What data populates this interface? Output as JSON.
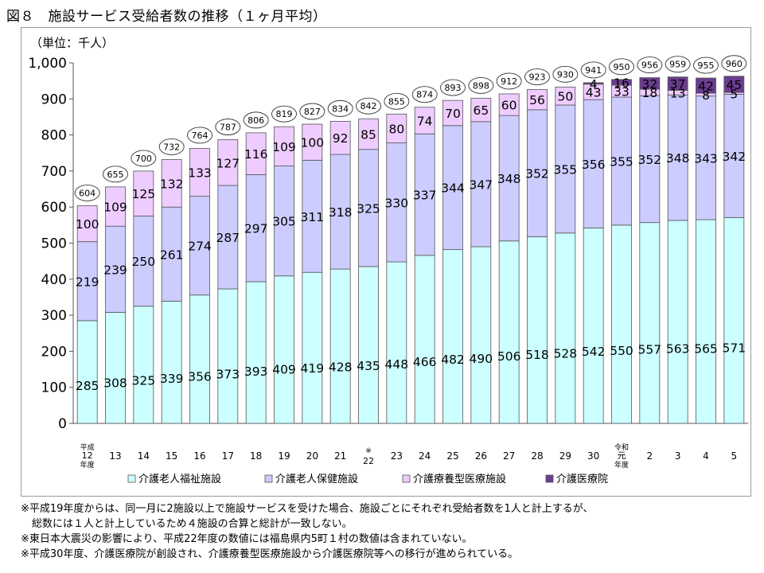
{
  "title": "図８　施設サービス受給者数の推移（１ヶ月平均）",
  "unit_label": "（単位：千人）",
  "colors": {
    "fukushi": "#ccffff",
    "hoken": "#ccccff",
    "ryoyo": "#eeccff",
    "iryoin": "#6a3d8f",
    "edge": "#555555"
  },
  "chart_data": {
    "type": "bar",
    "stacked": true,
    "title": "施設サービス受給者数の推移（１ヶ月平均）",
    "ylabel": "（単位：千人）",
    "ylim": [
      0,
      1000
    ],
    "yticks": [
      "0",
      "100",
      "200",
      "300",
      "400",
      "500",
      "600",
      "700",
      "800",
      "900",
      "1,000"
    ],
    "categories": [
      [
        "平成",
        "12",
        "年度"
      ],
      [
        "13"
      ],
      [
        "14"
      ],
      [
        "15"
      ],
      [
        "16"
      ],
      [
        "17"
      ],
      [
        "18"
      ],
      [
        "19"
      ],
      [
        "20"
      ],
      [
        "21"
      ],
      [
        "※",
        "22"
      ],
      [
        "23"
      ],
      [
        "24"
      ],
      [
        "25"
      ],
      [
        "26"
      ],
      [
        "27"
      ],
      [
        "28"
      ],
      [
        "29"
      ],
      [
        "30"
      ],
      [
        "令和",
        "元",
        "年度"
      ],
      [
        "2"
      ],
      [
        "3"
      ],
      [
        "4"
      ],
      [
        "5"
      ]
    ],
    "series": [
      {
        "name": "介護老人福祉施設",
        "values": [
          285,
          308,
          325,
          339,
          356,
          373,
          393,
          409,
          419,
          428,
          435,
          448,
          466,
          482,
          490,
          506,
          518,
          528,
          542,
          550,
          557,
          563,
          565,
          571
        ]
      },
      {
        "name": "介護老人保健施設",
        "values": [
          219,
          239,
          250,
          261,
          274,
          287,
          297,
          305,
          311,
          318,
          325,
          330,
          337,
          344,
          347,
          348,
          352,
          355,
          356,
          355,
          352,
          348,
          343,
          342
        ]
      },
      {
        "name": "介護療養型医療施設",
        "values": [
          100,
          109,
          125,
          132,
          133,
          127,
          116,
          109,
          100,
          92,
          85,
          80,
          74,
          70,
          65,
          60,
          56,
          50,
          43,
          33,
          18,
          13,
          8,
          5
        ]
      },
      {
        "name": "介護医療院",
        "values": [
          null,
          null,
          null,
          null,
          null,
          null,
          null,
          null,
          null,
          null,
          null,
          null,
          null,
          null,
          null,
          null,
          null,
          null,
          4,
          16,
          32,
          37,
          42,
          45
        ]
      }
    ],
    "totals": [
      604,
      655,
      700,
      732,
      764,
      787,
      806,
      819,
      827,
      834,
      842,
      855,
      874,
      893,
      898,
      912,
      923,
      930,
      941,
      950,
      956,
      959,
      955,
      960
    ],
    "legend": [
      "介護老人福祉施設",
      "介護老人保健施設",
      "介護療養型医療施設",
      "介護医療院"
    ],
    "legend_position": "bottom"
  },
  "notes": [
    "※平成19年度からは、同一月に2施設以上で施設サービスを受けた場合、施設ごとにそれぞれ受給者数を1人と計上するが、",
    "総数には１人と計上しているため４施設の合算と総計が一致しない。",
    "※東日本大震災の影響により、平成22年度の数値には福島県内5町１村の数値は含まれていない。",
    "※平成30年度、介護医療院が創設され、介護療養型医療施設から介護医療院等への移行が進められている。"
  ]
}
